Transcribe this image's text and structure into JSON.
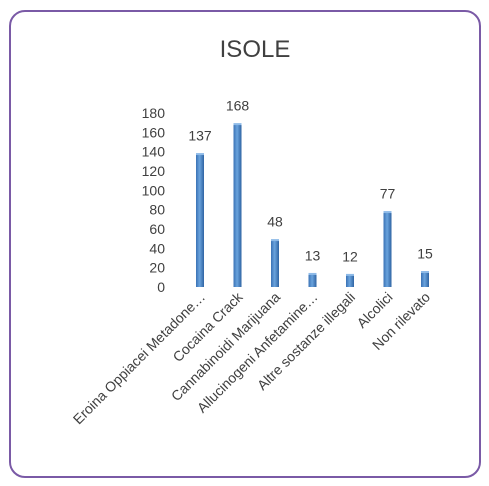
{
  "chart_data": {
    "type": "bar",
    "title": "ISOLE",
    "xlabel": "",
    "ylabel": "",
    "categories": [
      "Eroina Oppiacei Metadone…",
      "Cocaina Crack",
      "Cannabinoidi Marijuana",
      "Allucinogeni Anfetamine…",
      "Altre sostanze illegali",
      "Alcolici",
      "Non rilevato"
    ],
    "values": [
      137,
      168,
      48,
      13,
      12,
      77,
      15
    ],
    "ylim": [
      0,
      180
    ],
    "yticks": [
      0,
      20,
      40,
      60,
      80,
      100,
      120,
      140,
      160,
      180
    ],
    "grid": false,
    "legend": "none",
    "bar_color": "#4a86c8",
    "frame_color": "#7a5aa6",
    "text_color": "#404040"
  }
}
